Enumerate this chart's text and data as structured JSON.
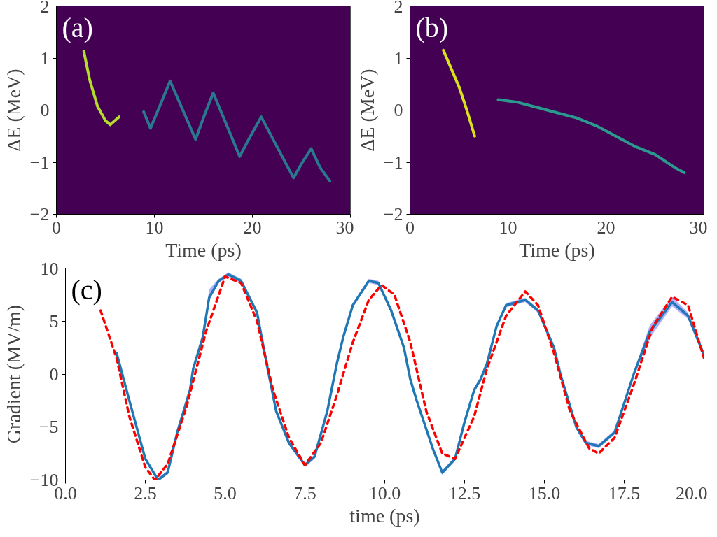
{
  "chart_data": [
    {
      "type": "line",
      "annotations": [
        "(a)"
      ],
      "xlabel": "Time (ps)",
      "ylabel": "ΔE (MeV)",
      "xlim": [
        0,
        30
      ],
      "ylim": [
        -2,
        2
      ],
      "xticks": [
        0,
        10,
        20,
        30
      ],
      "yticks": [
        {
          "value": -2,
          "label": "−2"
        },
        {
          "value": -1,
          "label": "−1"
        },
        0,
        1,
        2
      ],
      "grid": false,
      "marker": "none",
      "series": [
        {
          "color": "#b5de2b",
          "x": [
            2.8,
            3.4,
            4.2,
            5.0,
            5.5,
            6.4
          ],
          "values": [
            1.13,
            0.58,
            0.07,
            -0.2,
            -0.28,
            -0.13
          ]
        },
        {
          "color": "#2a788e",
          "x": [
            8.9,
            9.6,
            10.6,
            11.6,
            12.9,
            14.2,
            15.1,
            16.0,
            17.4,
            18.7,
            19.8,
            20.9,
            22.5,
            24.2,
            25.1,
            26.0,
            26.9,
            27.9
          ],
          "values": [
            -0.03,
            -0.35,
            0.1,
            0.56,
            0.0,
            -0.56,
            -0.1,
            0.33,
            -0.3,
            -0.89,
            -0.5,
            -0.13,
            -0.7,
            -1.3,
            -1.0,
            -0.74,
            -1.1,
            -1.36
          ]
        }
      ]
    },
    {
      "type": "line",
      "annotations": [
        "(b)"
      ],
      "xlabel": "Time (ps)",
      "ylabel": "ΔE (MeV)",
      "xlim": [
        0,
        30
      ],
      "ylim": [
        -2,
        2
      ],
      "xticks": [
        0,
        10,
        20,
        30
      ],
      "yticks": [
        {
          "value": -2,
          "label": "−2"
        },
        {
          "value": -1,
          "label": "−1"
        },
        0,
        1,
        2
      ],
      "grid": false,
      "marker": "none",
      "series": [
        {
          "color": "#d8e219",
          "x": [
            3.4,
            4.2,
            5.0,
            5.8,
            6.6
          ],
          "values": [
            1.15,
            0.8,
            0.45,
            0.0,
            -0.5
          ]
        },
        {
          "color": "#2a9a8e",
          "x": [
            9.0,
            11.0,
            13.0,
            15.0,
            17.0,
            19.0,
            21.0,
            23.0,
            25.0,
            27.0,
            28.0
          ],
          "values": [
            0.2,
            0.15,
            0.05,
            -0.05,
            -0.15,
            -0.3,
            -0.5,
            -0.7,
            -0.85,
            -1.1,
            -1.2
          ]
        }
      ]
    },
    {
      "type": "line",
      "annotations": [
        "(c)"
      ],
      "xlabel": "time (ps)",
      "ylabel": "Gradient (MV/m)",
      "xlim": [
        0,
        20
      ],
      "ylim": [
        -10,
        10
      ],
      "xticks": [
        {
          "value": 0,
          "label": "0.0"
        },
        2.5,
        {
          "value": 5,
          "label": "5.0"
        },
        7.5,
        {
          "value": 10,
          "label": "10.0"
        },
        12.5,
        {
          "value": 15,
          "label": "15.0"
        },
        17.5,
        {
          "value": 20,
          "label": "20.0"
        }
      ],
      "yticks": [
        {
          "value": -10,
          "label": "−10"
        },
        {
          "value": -5,
          "label": "−5"
        },
        0,
        5,
        10
      ],
      "grid": false,
      "marker": "none",
      "series": [
        {
          "color": "#1f77b4",
          "line_style": "solid",
          "x": [
            1.6,
            2.0,
            2.5,
            2.9,
            3.2,
            3.5,
            3.9,
            4.0,
            4.3,
            4.5,
            4.8,
            5.1,
            5.5,
            6.0,
            6.3,
            6.6,
            7.0,
            7.5,
            7.8,
            8.2,
            8.5,
            8.7,
            9.0,
            9.5,
            9.8,
            10.2,
            10.6,
            10.8,
            11.0,
            11.5,
            11.8,
            12.2,
            12.5,
            12.8,
            13.0,
            13.2,
            13.5,
            13.8,
            14.4,
            14.8,
            15.3,
            15.5,
            16.0,
            16.3,
            16.7,
            17.2,
            17.8,
            18.3,
            19.0,
            19.5,
            20.0
          ],
          "values": [
            2.0,
            -2.5,
            -8.0,
            -10.0,
            -9.3,
            -5.5,
            -1.5,
            0.5,
            3.5,
            7.2,
            8.8,
            9.4,
            8.8,
            5.8,
            1.0,
            -3.5,
            -6.5,
            -8.6,
            -7.8,
            -3.5,
            1.0,
            3.5,
            6.5,
            8.8,
            8.6,
            6.0,
            2.5,
            -0.5,
            -2.5,
            -7.0,
            -9.3,
            -8.0,
            -4.5,
            -1.5,
            -0.5,
            1.0,
            4.5,
            6.5,
            7.0,
            6.0,
            2.5,
            0.0,
            -5.0,
            -6.5,
            -6.8,
            -5.5,
            0.0,
            4.0,
            6.8,
            5.5,
            1.8
          ],
          "lower": [
            1.8,
            -2.7,
            -8.2,
            -10.0,
            -9.5,
            -5.7,
            -1.7,
            0.3,
            3.3,
            7.0,
            8.6,
            9.2,
            8.6,
            5.6,
            0.8,
            -3.7,
            -6.7,
            -8.8,
            -8.0,
            -3.7,
            0.8,
            3.3,
            6.3,
            8.6,
            8.4,
            5.8,
            2.3,
            -0.7,
            -2.7,
            -7.2,
            -9.5,
            -8.2,
            -4.7,
            -1.7,
            -0.7,
            0.8,
            4.3,
            6.3,
            6.8,
            5.8,
            2.3,
            -0.2,
            -5.2,
            -6.7,
            -7.0,
            -5.7,
            -0.2,
            3.4,
            6.4,
            5.2,
            1.6
          ],
          "upper": [
            2.2,
            -2.3,
            -7.8,
            -9.8,
            -9.1,
            -5.3,
            -1.3,
            0.7,
            3.7,
            8.0,
            9.0,
            9.6,
            9.0,
            6.0,
            1.2,
            -3.3,
            -6.3,
            -8.4,
            -7.6,
            -3.3,
            1.2,
            3.7,
            6.7,
            9.0,
            8.8,
            6.2,
            2.7,
            -0.3,
            -2.3,
            -6.8,
            -9.1,
            -7.8,
            -4.3,
            -1.3,
            -0.3,
            1.2,
            4.7,
            6.7,
            7.2,
            6.2,
            2.7,
            0.2,
            -4.8,
            -6.3,
            -6.6,
            -5.3,
            0.2,
            4.6,
            7.3,
            5.8,
            2.0
          ]
        },
        {
          "color": "#ff0000",
          "line_style": "dashed",
          "x": [
            1.1,
            1.6,
            2.0,
            2.5,
            2.8,
            3.2,
            3.8,
            4.4,
            5.0,
            5.5,
            6.0,
            6.5,
            7.0,
            7.5,
            8.0,
            8.5,
            9.0,
            9.5,
            9.9,
            10.3,
            10.8,
            11.3,
            11.8,
            12.2,
            12.8,
            13.2,
            13.8,
            14.4,
            14.8,
            15.3,
            15.8,
            16.4,
            16.7,
            17.2,
            17.8,
            18.4,
            19.0,
            19.5,
            20.0
          ],
          "values": [
            6.0,
            1.5,
            -4.0,
            -8.8,
            -10.0,
            -8.5,
            -3.0,
            4.0,
            9.2,
            8.6,
            5.0,
            -1.5,
            -6.0,
            -8.6,
            -6.5,
            -2.0,
            3.0,
            7.0,
            8.4,
            7.5,
            3.0,
            -3.5,
            -7.5,
            -8.0,
            -4.0,
            0.5,
            5.5,
            7.8,
            6.5,
            2.0,
            -3.5,
            -7.0,
            -7.5,
            -6.0,
            -1.0,
            4.5,
            7.3,
            6.5,
            1.5
          ]
        }
      ]
    }
  ]
}
